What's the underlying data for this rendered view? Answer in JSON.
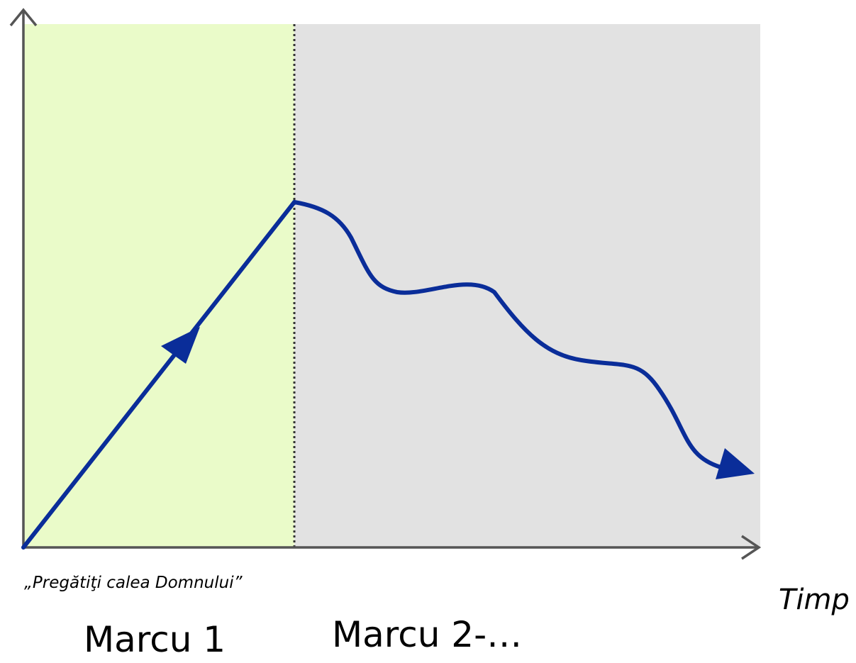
{
  "diagram": {
    "caption": "„Pregătiţi calea Domnului”",
    "x_axis_label": "Timp",
    "sections": [
      {
        "label": "Marcu 1",
        "color": "#eafbc9"
      },
      {
        "label": "Marcu 2-…",
        "color": "#e2e2e2"
      }
    ],
    "curve_color": "#0a2d99",
    "axis_color": "#555555",
    "divider_color": "#333333"
  }
}
